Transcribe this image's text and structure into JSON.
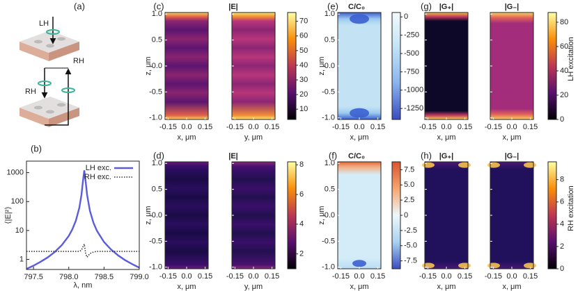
{
  "diagram": {
    "label": "(a)",
    "labels": [
      "LH",
      "RH",
      "RH"
    ]
  },
  "chart_data": [
    {
      "type": "line",
      "label": "(b)",
      "xlabel": "λ, nm",
      "ylabel": "⟨|E|²⟩",
      "log_y": true,
      "xlim": [
        797.4,
        799.0
      ],
      "ylim": [
        0.45,
        2500
      ],
      "xticks": [
        797.5,
        {
          "value": 798,
          "label": "798.0"
        },
        798.5,
        {
          "value": 799,
          "label": "799.0"
        }
      ],
      "yticks": [
        1,
        10,
        100,
        1000
      ],
      "legend": "upper right",
      "x": [
        797.4,
        797.5,
        797.6,
        797.7,
        797.8,
        797.9,
        798.0,
        798.05,
        798.1,
        798.15,
        798.18,
        798.2,
        798.22,
        798.24,
        798.26,
        798.3,
        798.35,
        798.4,
        798.5,
        798.6,
        798.7,
        798.8,
        798.9,
        799.0
      ],
      "series": [
        {
          "name": "LH exc.",
          "color": "#5b5bdd",
          "style": "solid",
          "values": [
            0.47,
            0.61,
            0.83,
            1.17,
            1.8,
            3.1,
            6.5,
            10.9,
            21.7,
            61.6,
            170,
            478,
            1200,
            478,
            170,
            47.7,
            18.5,
            9.7,
            4.0,
            2.2,
            1.38,
            0.94,
            0.69,
            0.52
          ]
        },
        {
          "name": "RH exc.",
          "color": "#333333",
          "style": "dotted",
          "values": [
            1.9,
            1.9,
            1.9,
            1.9,
            1.9,
            1.9,
            1.9,
            1.9,
            1.9,
            1.9,
            2.1,
            2.7,
            3.4,
            1.6,
            1.2,
            1.6,
            1.8,
            1.9,
            1.9,
            1.9,
            1.9,
            1.9,
            1.9,
            1.9
          ]
        }
      ]
    },
    {
      "type": "heatmap",
      "label": "(c)",
      "title": "|E|",
      "ylabel": "z, μm",
      "cmap": "inferno",
      "panels": [
        {
          "xlabel": "x, μm"
        },
        {
          "xlabel": "y, μm"
        }
      ],
      "xlim": [
        -0.175,
        0.175
      ],
      "ylim": [
        -1.03,
        1.03
      ],
      "xticks": [
        -0.15,
        {
          "value": 0,
          "label": "0.0"
        },
        0.15
      ],
      "yticks": [
        {
          "value": -1,
          "label": "-1.0"
        },
        -0.5,
        {
          "value": 0,
          "label": "0.0"
        },
        0.5,
        {
          "value": 1,
          "label": "1.0"
        }
      ],
      "colorbar": {
        "lim": [
          3,
          76
        ],
        "ticks": [
          10,
          20,
          30,
          40,
          50,
          60,
          70
        ]
      }
    },
    {
      "type": "heatmap",
      "label": "(e)",
      "title": "C/C₀",
      "ylabel": "z, μm",
      "cmap": "blues",
      "panels": [
        {
          "xlabel": "x, μm"
        }
      ],
      "xlim": [
        -0.175,
        0.175
      ],
      "ylim": [
        -1.03,
        1.03
      ],
      "xticks": [
        -0.15,
        {
          "value": 0,
          "label": "0.0"
        },
        0.15
      ],
      "yticks": [
        {
          "value": -1,
          "label": "-1.0"
        },
        -0.5,
        {
          "value": 0,
          "label": "0.0"
        },
        0.5,
        {
          "value": 1,
          "label": "1.0"
        }
      ],
      "colorbar": {
        "lim": [
          -1400,
          60
        ],
        "ticks": [
          0,
          -250,
          -500,
          -750,
          -1000,
          -1250
        ]
      }
    },
    {
      "type": "heatmap",
      "label": "(g)",
      "cmap": "inferno",
      "side_label": "LH excitation",
      "panels": [
        {
          "title": "|G₊|",
          "xlabel": "x, μm"
        },
        {
          "title": "|G₋|",
          "xlabel": "x, μm"
        }
      ],
      "xlim": [
        -0.175,
        0.175
      ],
      "ylim": [
        -1.03,
        1.03
      ],
      "xticks": [
        -0.15,
        {
          "value": 0,
          "label": "0.0"
        },
        0.15
      ],
      "yticks": [
        {
          "value": -1,
          "label": "-1.0"
        },
        -0.5,
        {
          "value": 0,
          "label": "0.0"
        },
        0.5,
        {
          "value": 1,
          "label": "1.0"
        }
      ],
      "colorbar": {
        "lim": [
          0,
          88
        ],
        "ticks": [
          0,
          20,
          40,
          60,
          80
        ]
      }
    },
    {
      "type": "heatmap",
      "label": "(d)",
      "title": "|E|",
      "ylabel": "z, μm",
      "cmap": "inferno",
      "panels": [
        {
          "xlabel": "x, μm"
        },
        {
          "xlabel": "y, μm"
        }
      ],
      "xlim": [
        -0.175,
        0.175
      ],
      "ylim": [
        -1.03,
        1.03
      ],
      "xticks": [
        -0.15,
        {
          "value": 0,
          "label": "0.0"
        },
        0.15
      ],
      "yticks": [
        {
          "value": -1,
          "label": "-1.0"
        },
        -0.5,
        {
          "value": 0,
          "label": "0.0"
        },
        0.5,
        {
          "value": 1,
          "label": "1.0"
        }
      ],
      "colorbar": {
        "lim": [
          1,
          8.2
        ],
        "ticks": [
          2,
          4,
          6,
          8
        ]
      }
    },
    {
      "type": "heatmap",
      "label": "(f)",
      "title": "C/C₀",
      "ylabel": "z, μm",
      "cmap": "coolwarm",
      "panels": [
        {
          "xlabel": "x, μm"
        }
      ],
      "xlim": [
        -0.175,
        0.175
      ],
      "ylim": [
        -1.03,
        1.03
      ],
      "xticks": [
        -0.15,
        {
          "value": 0,
          "label": "0.0"
        },
        0.15
      ],
      "yticks": [
        {
          "value": -1,
          "label": "-1.0"
        },
        -0.5,
        {
          "value": 0,
          "label": "0.0"
        },
        0.5,
        {
          "value": 1,
          "label": "1.0"
        }
      ],
      "colorbar": {
        "lim": [
          -8.8,
          8.8
        ],
        "ticks": [
          7.5,
          {
            "value": 5,
            "label": "5.0"
          },
          2.5,
          0,
          -2.5,
          {
            "value": -5,
            "label": "-5.0"
          },
          -7.5
        ]
      }
    },
    {
      "type": "heatmap",
      "label": "(h)",
      "cmap": "inferno",
      "side_label": "RH excitation",
      "panels": [
        {
          "title": "|G₊|",
          "xlabel": "x, μm"
        },
        {
          "title": "|G₋|",
          "xlabel": "x, μm"
        }
      ],
      "xlim": [
        -0.175,
        0.175
      ],
      "ylim": [
        -1.03,
        1.03
      ],
      "xticks": [
        -0.15,
        {
          "value": 0,
          "label": "0.0"
        },
        0.15
      ],
      "yticks": [
        {
          "value": -1,
          "label": "-1.0"
        },
        -0.5,
        {
          "value": 0,
          "label": "0.0"
        },
        0.5,
        {
          "value": 1,
          "label": "1.0"
        }
      ],
      "colorbar": {
        "lim": [
          0,
          9.6
        ],
        "ticks": [
          0,
          2,
          4,
          6,
          8
        ]
      }
    }
  ]
}
